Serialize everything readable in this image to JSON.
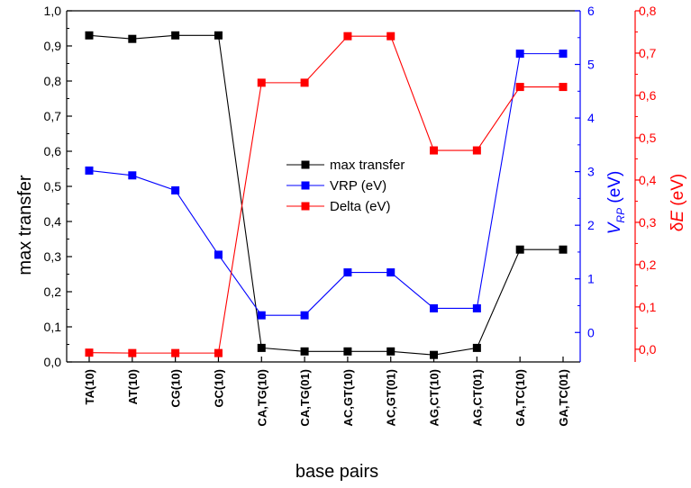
{
  "chart_data": {
    "type": "line",
    "xlabel": "base pairs",
    "categories": [
      "TA(10)",
      "AT(10)",
      "CG(10)",
      "GC(10)",
      "CA,TG(10)",
      "CA,TG(01)",
      "AC,GT(10)",
      "AC,GT(01)",
      "AG,CT(10)",
      "AG,CT(01)",
      "GA,TC(10)",
      "GA,TC(01)"
    ],
    "axes": {
      "left": {
        "label": "max transfer",
        "ylim": [
          0.0,
          1.0
        ],
        "ticks": [
          "0,0",
          "0,1",
          "0,2",
          "0,3",
          "0,4",
          "0,5",
          "0,6",
          "0,7",
          "0,8",
          "0,9",
          "1,0"
        ],
        "color": "#000000"
      },
      "right1": {
        "label_main": "V",
        "label_sub": "RP",
        "label_tail": " (eV)",
        "ylim": [
          -0.55,
          6.0
        ],
        "ticks": [
          "0",
          "1",
          "2",
          "3",
          "4",
          "5",
          "6"
        ],
        "color": "#0000ff"
      },
      "right2": {
        "label_pre": "δ",
        "label_italic": "E",
        "label_tail": " (eV)",
        "ylim": [
          -0.03,
          0.8
        ],
        "ticks": [
          "0,0",
          "0,1",
          "0,2",
          "0,3",
          "0,4",
          "0,5",
          "0,6",
          "0,7",
          "0,8"
        ],
        "color": "#ff0000"
      }
    },
    "series": [
      {
        "name": "max transfer",
        "axis": "left",
        "color": "#000000",
        "values": [
          0.93,
          0.92,
          0.93,
          0.93,
          0.04,
          0.03,
          0.03,
          0.03,
          0.02,
          0.04,
          0.32,
          0.32
        ]
      },
      {
        "name": "VRP (eV)",
        "axis": "right1",
        "color": "#0000ff",
        "values": [
          3.02,
          2.93,
          2.65,
          1.45,
          0.32,
          0.32,
          1.12,
          1.12,
          0.45,
          0.45,
          5.2,
          5.2
        ]
      },
      {
        "name": "Delta (eV)",
        "axis": "right2",
        "color": "#ff0000",
        "values": [
          -0.008,
          -0.009,
          -0.009,
          -0.009,
          0.63,
          0.63,
          0.74,
          0.74,
          0.47,
          0.47,
          0.62,
          0.62
        ]
      }
    ],
    "legend_position": "center",
    "grid": false
  }
}
